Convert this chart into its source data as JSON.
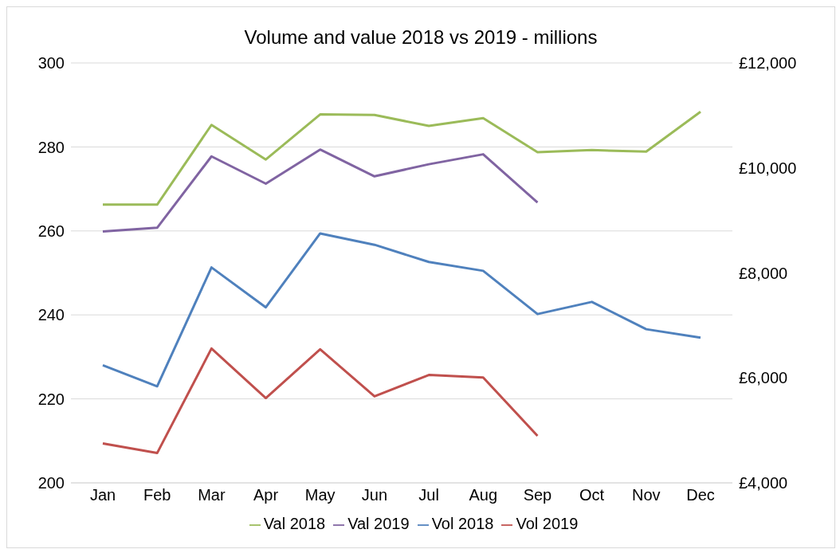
{
  "chart_data": {
    "type": "line",
    "title": "Volume and value 2018 vs 2019 - millions",
    "categories": [
      "Jan",
      "Feb",
      "Mar",
      "Apr",
      "May",
      "Jun",
      "Jul",
      "Aug",
      "Sep",
      "Oct",
      "Nov",
      "Dec"
    ],
    "series": [
      {
        "name": "Vol 2018",
        "color": "#4f81bd",
        "values": [
          228,
          223,
          251.3,
          241.8,
          259.4,
          256.7,
          252.6,
          250.5,
          240.2,
          243.1,
          236.6,
          234.6
        ]
      },
      {
        "name": "Vol 2019",
        "color": "#c0504d",
        "values": [
          209.4,
          207.1,
          232,
          220.2,
          231.8,
          220.6,
          225.7,
          225.1,
          211.2,
          null,
          null,
          null
        ]
      },
      {
        "name": "Val 2018",
        "color": "#9bbb59",
        "axis": "y2",
        "values": [
          9300,
          9300,
          10820,
          10160,
          11020,
          11010,
          10800,
          10950,
          10300,
          10340,
          10310,
          11070
        ]
      },
      {
        "name": "Val 2019",
        "color": "#8064a2",
        "axis": "y2",
        "values": [
          8790,
          8860,
          10220,
          9700,
          10350,
          9840,
          10070,
          10260,
          9340,
          null,
          null,
          null
        ]
      }
    ],
    "ylim": [
      200,
      300
    ],
    "yticks": [
      200,
      220,
      240,
      260,
      280,
      300
    ],
    "y2lim": [
      4000,
      12000
    ],
    "y2ticks": [
      {
        "value": 4000,
        "label": "£4,000"
      },
      {
        "value": 6000,
        "label": "£6,000"
      },
      {
        "value": 8000,
        "label": "£8,000"
      },
      {
        "value": 10000,
        "label": "£10,000"
      },
      {
        "value": 12000,
        "label": "£12,000"
      }
    ],
    "grid": "y",
    "legend": "bottom",
    "marker": "none",
    "line_style": "solid"
  }
}
